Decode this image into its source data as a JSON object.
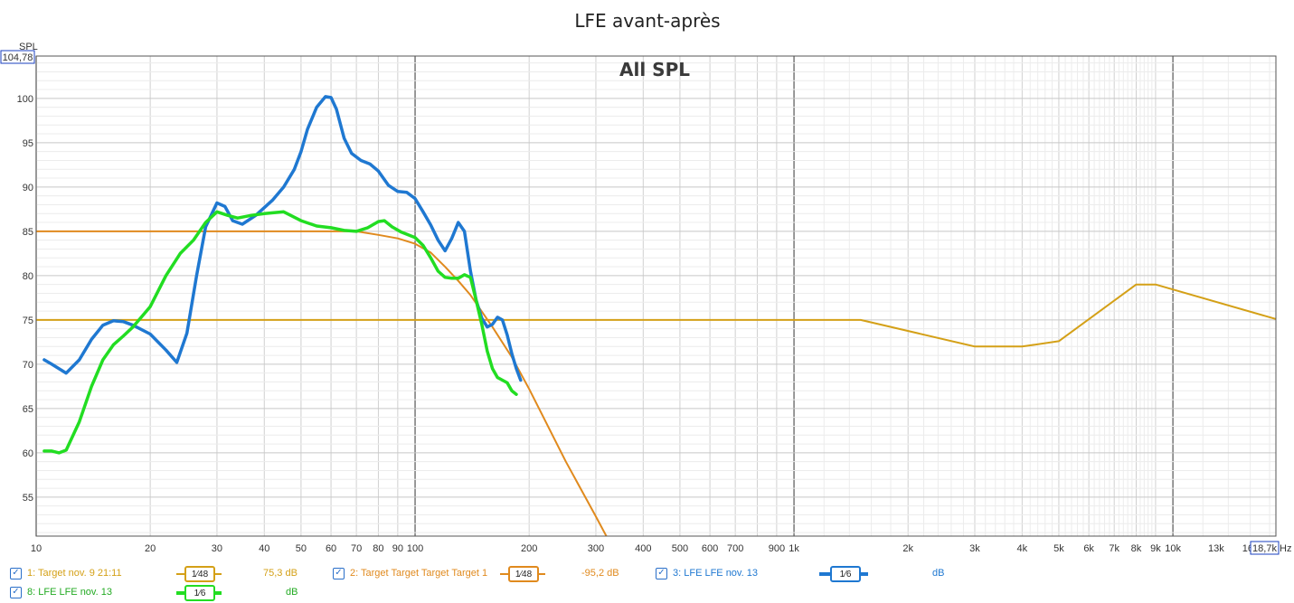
{
  "title": "LFE avant-après",
  "overlay_label": "All SPL",
  "y_axis": {
    "label": "SPL",
    "top_value": "104,78"
  },
  "x_axis": {
    "unit": "Hz",
    "right_value": "18,7k"
  },
  "legend": [
    {
      "label": "1: Target nov. 9 21:11",
      "smoothing": "1⁄48",
      "value": "75,3 dB",
      "color": "#d4a017"
    },
    {
      "label": "2: Target Target Target Target 1",
      "smoothing": "1⁄48",
      "value": "-95,2 dB",
      "color": "#e08a1e"
    },
    {
      "label": "3: LFE LFE nov. 13",
      "smoothing": "1⁄6",
      "value": "dB",
      "color": "#1f78d1"
    },
    {
      "label": "8: LFE LFE nov. 13",
      "smoothing": "1⁄6",
      "value": "dB",
      "color": "#22dd22"
    }
  ],
  "chart_data": {
    "type": "line",
    "title": "LFE avant-après",
    "ylabel": "SPL",
    "xlabel": "Hz",
    "x_scale": "log",
    "xlim": [
      10,
      18700
    ],
    "ylim": [
      50.6,
      104.78
    ],
    "x_ticks": [
      {
        "v": 10,
        "t": "10"
      },
      {
        "v": 20,
        "t": "20"
      },
      {
        "v": 30,
        "t": "30"
      },
      {
        "v": 40,
        "t": "40"
      },
      {
        "v": 50,
        "t": "50"
      },
      {
        "v": 60,
        "t": "60"
      },
      {
        "v": 70,
        "t": "70"
      },
      {
        "v": 80,
        "t": "80"
      },
      {
        "v": 90,
        "t": "90"
      },
      {
        "v": 100,
        "t": "100"
      },
      {
        "v": 200,
        "t": "200"
      },
      {
        "v": 300,
        "t": "300"
      },
      {
        "v": 400,
        "t": "400"
      },
      {
        "v": 500,
        "t": "500"
      },
      {
        "v": 600,
        "t": "600"
      },
      {
        "v": 700,
        "t": "700"
      },
      {
        "v": 900,
        "t": "900"
      },
      {
        "v": 1000,
        "t": "1k"
      },
      {
        "v": 2000,
        "t": "2k"
      },
      {
        "v": 3000,
        "t": "3k"
      },
      {
        "v": 4000,
        "t": "4k"
      },
      {
        "v": 5000,
        "t": "5k"
      },
      {
        "v": 6000,
        "t": "6k"
      },
      {
        "v": 7000,
        "t": "7k"
      },
      {
        "v": 8000,
        "t": "8k"
      },
      {
        "v": 9000,
        "t": "9k"
      },
      {
        "v": 10000,
        "t": "10k"
      },
      {
        "v": 13000,
        "t": "13k"
      },
      {
        "v": 16000,
        "t": "16k"
      }
    ],
    "y_ticks": [
      55,
      60,
      65,
      70,
      75,
      80,
      85,
      90,
      95,
      100
    ],
    "grid": true,
    "series": [
      {
        "name": "1: Target nov. 9 21:11",
        "color": "#d4a017",
        "width": 2,
        "points": [
          [
            10,
            75
          ],
          [
            1500,
            75
          ],
          [
            3000,
            72
          ],
          [
            4000,
            72
          ],
          [
            5000,
            72.6
          ],
          [
            8000,
            79
          ],
          [
            9000,
            79
          ],
          [
            18700,
            75.1
          ]
        ]
      },
      {
        "name": "2: Target Target Target Target 1",
        "color": "#e08a1e",
        "width": 2,
        "points": [
          [
            10,
            85
          ],
          [
            60,
            85
          ],
          [
            70,
            85
          ],
          [
            80,
            84.6
          ],
          [
            90,
            84.2
          ],
          [
            100,
            83.6
          ],
          [
            110,
            82.6
          ],
          [
            120,
            81
          ],
          [
            130,
            79.4
          ],
          [
            140,
            77.8
          ],
          [
            160,
            74.2
          ],
          [
            180,
            70.8
          ],
          [
            200,
            67.2
          ],
          [
            250,
            59
          ],
          [
            300,
            52.8
          ],
          [
            330,
            49.5
          ]
        ]
      },
      {
        "name": "3: LFE LFE nov. 13",
        "color": "#1f78d1",
        "width": 3.5,
        "points": [
          [
            10.5,
            70.5
          ],
          [
            11,
            70
          ],
          [
            12,
            69
          ],
          [
            13,
            70.5
          ],
          [
            14,
            72.8
          ],
          [
            15,
            74.4
          ],
          [
            16,
            74.9
          ],
          [
            17,
            74.8
          ],
          [
            18,
            74.4
          ],
          [
            20,
            73.4
          ],
          [
            22,
            71.6
          ],
          [
            23.5,
            70.2
          ],
          [
            25,
            73.5
          ],
          [
            26.5,
            80
          ],
          [
            28,
            85.5
          ],
          [
            30,
            88.2
          ],
          [
            31.5,
            87.8
          ],
          [
            33,
            86.2
          ],
          [
            35,
            85.8
          ],
          [
            38,
            86.8
          ],
          [
            42,
            88.5
          ],
          [
            45,
            90
          ],
          [
            48,
            92
          ],
          [
            50,
            94
          ],
          [
            52,
            96.5
          ],
          [
            55,
            99
          ],
          [
            58,
            100.2
          ],
          [
            60,
            100.1
          ],
          [
            62,
            98.8
          ],
          [
            65,
            95.5
          ],
          [
            68,
            93.8
          ],
          [
            72,
            93
          ],
          [
            76,
            92.6
          ],
          [
            80,
            91.8
          ],
          [
            85,
            90.2
          ],
          [
            90,
            89.5
          ],
          [
            95,
            89.4
          ],
          [
            100,
            88.7
          ],
          [
            105,
            87.2
          ],
          [
            110,
            85.7
          ],
          [
            115,
            84
          ],
          [
            120,
            82.8
          ],
          [
            125,
            84.2
          ],
          [
            130,
            86
          ],
          [
            135,
            85
          ],
          [
            140,
            80.5
          ],
          [
            145,
            77.2
          ],
          [
            150,
            75.2
          ],
          [
            155,
            74.2
          ],
          [
            160,
            74.5
          ],
          [
            165,
            75.3
          ],
          [
            170,
            75
          ],
          [
            175,
            73.3
          ],
          [
            180,
            71.2
          ],
          [
            185,
            69.5
          ],
          [
            190,
            68.2
          ]
        ]
      },
      {
        "name": "8: LFE LFE nov. 13",
        "color": "#22dd22",
        "width": 3.5,
        "points": [
          [
            10.5,
            60.2
          ],
          [
            11,
            60.2
          ],
          [
            11.5,
            60
          ],
          [
            12,
            60.3
          ],
          [
            13,
            63.5
          ],
          [
            14,
            67.5
          ],
          [
            15,
            70.5
          ],
          [
            16,
            72.2
          ],
          [
            17,
            73.2
          ],
          [
            18,
            74.2
          ],
          [
            20,
            76.5
          ],
          [
            22,
            80
          ],
          [
            24,
            82.5
          ],
          [
            26,
            84
          ],
          [
            28,
            86
          ],
          [
            30,
            87.2
          ],
          [
            32,
            86.8
          ],
          [
            34,
            86.5
          ],
          [
            37,
            86.8
          ],
          [
            40,
            87
          ],
          [
            45,
            87.2
          ],
          [
            50,
            86.2
          ],
          [
            55,
            85.6
          ],
          [
            60,
            85.4
          ],
          [
            65,
            85.1
          ],
          [
            70,
            85
          ],
          [
            75,
            85.4
          ],
          [
            80,
            86.1
          ],
          [
            83,
            86.2
          ],
          [
            87,
            85.5
          ],
          [
            92,
            84.9
          ],
          [
            100,
            84.3
          ],
          [
            105,
            83.4
          ],
          [
            110,
            82
          ],
          [
            115,
            80.5
          ],
          [
            120,
            79.8
          ],
          [
            125,
            79.7
          ],
          [
            130,
            79.7
          ],
          [
            135,
            80.1
          ],
          [
            140,
            79.8
          ],
          [
            145,
            77.2
          ],
          [
            150,
            74.5
          ],
          [
            155,
            71.5
          ],
          [
            160,
            69.5
          ],
          [
            165,
            68.5
          ],
          [
            170,
            68.2
          ],
          [
            175,
            67.9
          ],
          [
            180,
            67
          ],
          [
            185,
            66.6
          ]
        ]
      }
    ]
  }
}
